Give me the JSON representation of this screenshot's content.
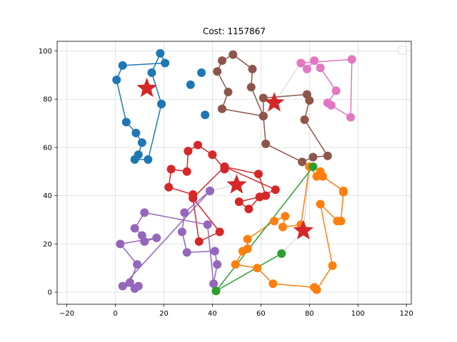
{
  "chart_data": {
    "type": "scatter",
    "title": "Cost: 1157867",
    "xlabel": "",
    "ylabel": "",
    "xlim": [
      -24,
      122
    ],
    "ylim": [
      -5,
      104
    ],
    "xticks": [
      -20,
      0,
      20,
      40,
      60,
      80,
      100,
      120
    ],
    "yticks": [
      0,
      20,
      40,
      60,
      80,
      100
    ],
    "grid": true,
    "legend": "top-right (empty)",
    "depots": [
      {
        "x": 13,
        "y": 84.5
      },
      {
        "x": 50,
        "y": 44.5
      },
      {
        "x": 65.5,
        "y": 78.5
      },
      {
        "x": 77.5,
        "y": 25.5
      }
    ],
    "depot_color": "#d62728",
    "series": [
      {
        "color": "#1f77b4",
        "depot": 0,
        "route": [
          [
            19,
            78
          ],
          [
            15,
            91
          ],
          [
            18.5,
            99
          ],
          [
            20.5,
            95
          ],
          [
            3,
            94
          ],
          [
            0.5,
            88
          ],
          [
            4.5,
            70.5
          ],
          [
            8.5,
            66
          ],
          [
            11,
            62
          ],
          [
            9.5,
            57
          ],
          [
            8,
            55
          ],
          [
            13.5,
            55
          ],
          [
            19,
            78
          ]
        ],
        "isolated": [
          [
            31,
            86
          ],
          [
            35.5,
            91
          ],
          [
            37,
            73.5
          ]
        ]
      },
      {
        "color": "#d62728",
        "depot": 1,
        "route": [
          [
            45,
            52
          ],
          [
            45,
            51
          ],
          [
            40,
            57
          ],
          [
            34,
            61
          ],
          [
            30,
            58.5
          ],
          [
            29.5,
            50
          ],
          [
            23,
            51
          ],
          [
            22,
            43.5
          ],
          [
            32,
            40.5
          ],
          [
            32,
            39
          ],
          [
            43,
            25
          ],
          [
            34.5,
            21
          ],
          [
            32,
            39
          ],
          [
            45,
            52
          ],
          [
            59,
            49
          ],
          [
            62,
            40
          ],
          [
            59.5,
            39.5
          ],
          [
            55,
            34.5
          ],
          [
            51,
            37.5
          ],
          [
            59.5,
            39.5
          ],
          [
            66,
            42.5
          ],
          [
            45,
            52
          ]
        ]
      },
      {
        "color": "#8c564b",
        "depot": 2,
        "route": [
          [
            61,
            73
          ],
          [
            56,
            85
          ],
          [
            56.5,
            92.5
          ],
          [
            48.5,
            98.5
          ],
          [
            44,
            96
          ],
          [
            42,
            91.5
          ],
          [
            46.5,
            83
          ],
          [
            44,
            76
          ],
          [
            61,
            73
          ],
          [
            62,
            61.5
          ],
          [
            77,
            54
          ],
          [
            81.5,
            56
          ],
          [
            87.5,
            56.5
          ],
          [
            78,
            71.5
          ],
          [
            80,
            79.5
          ],
          [
            79,
            82
          ],
          [
            61,
            80.5
          ],
          [
            61,
            73
          ]
        ]
      },
      {
        "color": "#e377c2",
        "depot": 2,
        "route": [
          [
            76.5,
            95
          ],
          [
            79,
            92.5
          ],
          [
            82,
            96
          ],
          [
            84.5,
            93
          ],
          [
            91,
            83.5
          ],
          [
            87.5,
            78.5
          ],
          [
            89,
            77.5
          ],
          [
            97,
            72.5
          ],
          [
            97.5,
            96.5
          ],
          [
            76.5,
            95
          ]
        ]
      },
      {
        "color": "#9467bd",
        "depot": 1,
        "route": [
          [
            39,
            42
          ],
          [
            28.5,
            33
          ],
          [
            27.5,
            25
          ],
          [
            29.5,
            16.5
          ],
          [
            41,
            17
          ],
          [
            42,
            11.5
          ],
          [
            40.5,
            3.5
          ],
          [
            38,
            28
          ],
          [
            12,
            33
          ],
          [
            8,
            26.5
          ],
          [
            11,
            23.5
          ],
          [
            12,
            21
          ],
          [
            17,
            22.5
          ],
          [
            2,
            20
          ],
          [
            9,
            11.5
          ],
          [
            6,
            4
          ],
          [
            8,
            1.5
          ],
          [
            9.5,
            2.5
          ],
          [
            3,
            2.5
          ],
          [
            39,
            42
          ]
        ]
      },
      {
        "color": "#ff7f0e",
        "depot": 3,
        "route": [
          [
            80,
            52
          ],
          [
            83,
            48
          ],
          [
            84.5,
            50
          ],
          [
            85.5,
            48
          ],
          [
            94,
            42
          ],
          [
            94,
            41.5
          ],
          [
            93,
            29.5
          ],
          [
            91.5,
            29.5
          ],
          [
            84.5,
            36.5
          ],
          [
            89.5,
            11
          ],
          [
            83,
            1
          ],
          [
            82,
            2
          ],
          [
            65,
            3.5
          ],
          [
            58.5,
            10
          ],
          [
            49.5,
            11.5
          ],
          [
            52.5,
            17
          ],
          [
            54.5,
            18
          ],
          [
            54.5,
            22
          ],
          [
            65.5,
            29.5
          ],
          [
            70,
            31.5
          ],
          [
            69,
            27
          ],
          [
            76.5,
            28
          ],
          [
            80,
            52
          ]
        ]
      },
      {
        "color": "#2ca02c",
        "depot": 3,
        "route": [
          [
            68.5,
            16
          ],
          [
            41.5,
            0.5
          ],
          [
            81.5,
            52
          ]
        ]
      }
    ]
  }
}
